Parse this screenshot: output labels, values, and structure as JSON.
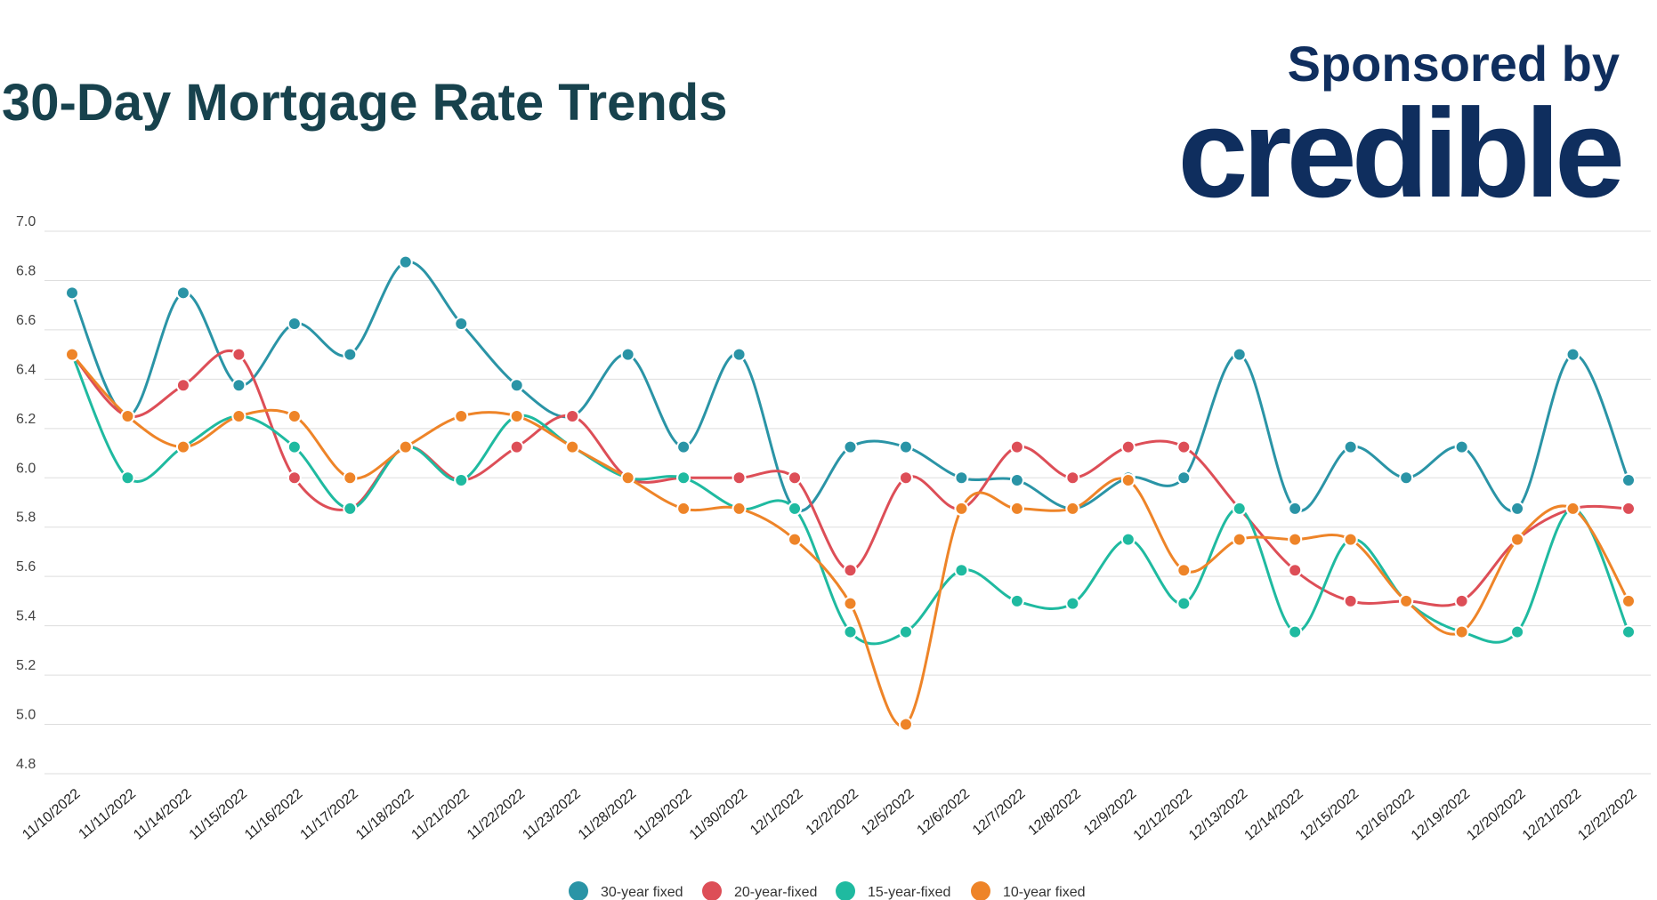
{
  "header": {
    "title": "30-Day Mortgage Rate Trends",
    "sponsored_label": "Sponsored by",
    "brand": "credible"
  },
  "colors": {
    "title": "#17424d",
    "brand": "#0f2e5e",
    "series": [
      "#2a94a6",
      "#dd4e57",
      "#1fbaa0",
      "#ee8428"
    ]
  },
  "chart_data": {
    "type": "line",
    "categories": [
      "11/10/2022",
      "11/11/2022",
      "11/14/2022",
      "11/15/2022",
      "11/16/2022",
      "11/17/2022",
      "11/18/2022",
      "11/21/2022",
      "11/22/2022",
      "11/23/2022",
      "11/28/2022",
      "11/29/2022",
      "11/30/2022",
      "12/1/2022",
      "12/2/2022",
      "12/5/2022",
      "12/6/2022",
      "12/7/2022",
      "12/8/2022",
      "12/9/2022",
      "12/12/2022",
      "12/13/2022",
      "12/14/2022",
      "12/15/2022",
      "12/16/2022",
      "12/19/2022",
      "12/20/2022",
      "12/21/2022",
      "12/22/2022"
    ],
    "y_ticks": [
      "7.0",
      "6.8",
      "6.6",
      "6.4",
      "6.2",
      "6.0",
      "5.8",
      "5.6",
      "5.4",
      "5.2",
      "5.0",
      "4.8"
    ],
    "ylim": [
      4.8,
      7.0
    ],
    "grid": true,
    "legend_position": "bottom",
    "series": [
      {
        "name": "30-year fixed",
        "values": [
          6.75,
          6.25,
          6.75,
          6.375,
          6.625,
          6.5,
          6.875,
          6.625,
          6.375,
          6.25,
          6.5,
          6.125,
          6.5,
          5.875,
          6.125,
          6.125,
          6.0,
          5.99,
          5.875,
          6.0,
          6.0,
          6.5,
          5.875,
          6.125,
          6.0,
          6.125,
          5.875,
          6.5,
          5.99
        ]
      },
      {
        "name": "20-year-fixed",
        "values": [
          6.5,
          6.25,
          6.375,
          6.5,
          6.0,
          5.875,
          6.125,
          5.99,
          6.125,
          6.25,
          6.0,
          6.0,
          6.0,
          6.0,
          5.625,
          6.0,
          5.875,
          6.125,
          6.0,
          6.125,
          6.125,
          5.875,
          5.625,
          5.5,
          5.5,
          5.5,
          5.75,
          5.875,
          5.875
        ]
      },
      {
        "name": "15-year-fixed",
        "values": [
          6.5,
          6.0,
          6.125,
          6.25,
          6.125,
          5.875,
          6.125,
          5.99,
          6.25,
          6.125,
          6.0,
          6.0,
          5.875,
          5.875,
          5.375,
          5.375,
          5.625,
          5.5,
          5.49,
          5.75,
          5.49,
          5.875,
          5.375,
          5.75,
          5.5,
          5.375,
          5.375,
          5.875,
          5.375
        ]
      },
      {
        "name": "10-year fixed",
        "values": [
          6.5,
          6.25,
          6.125,
          6.25,
          6.25,
          6.0,
          6.125,
          6.25,
          6.25,
          6.125,
          6.0,
          5.875,
          5.875,
          5.75,
          5.49,
          5.0,
          5.875,
          5.875,
          5.875,
          5.99,
          5.625,
          5.75,
          5.75,
          5.75,
          5.5,
          5.375,
          5.75,
          5.875,
          5.5
        ]
      }
    ]
  }
}
